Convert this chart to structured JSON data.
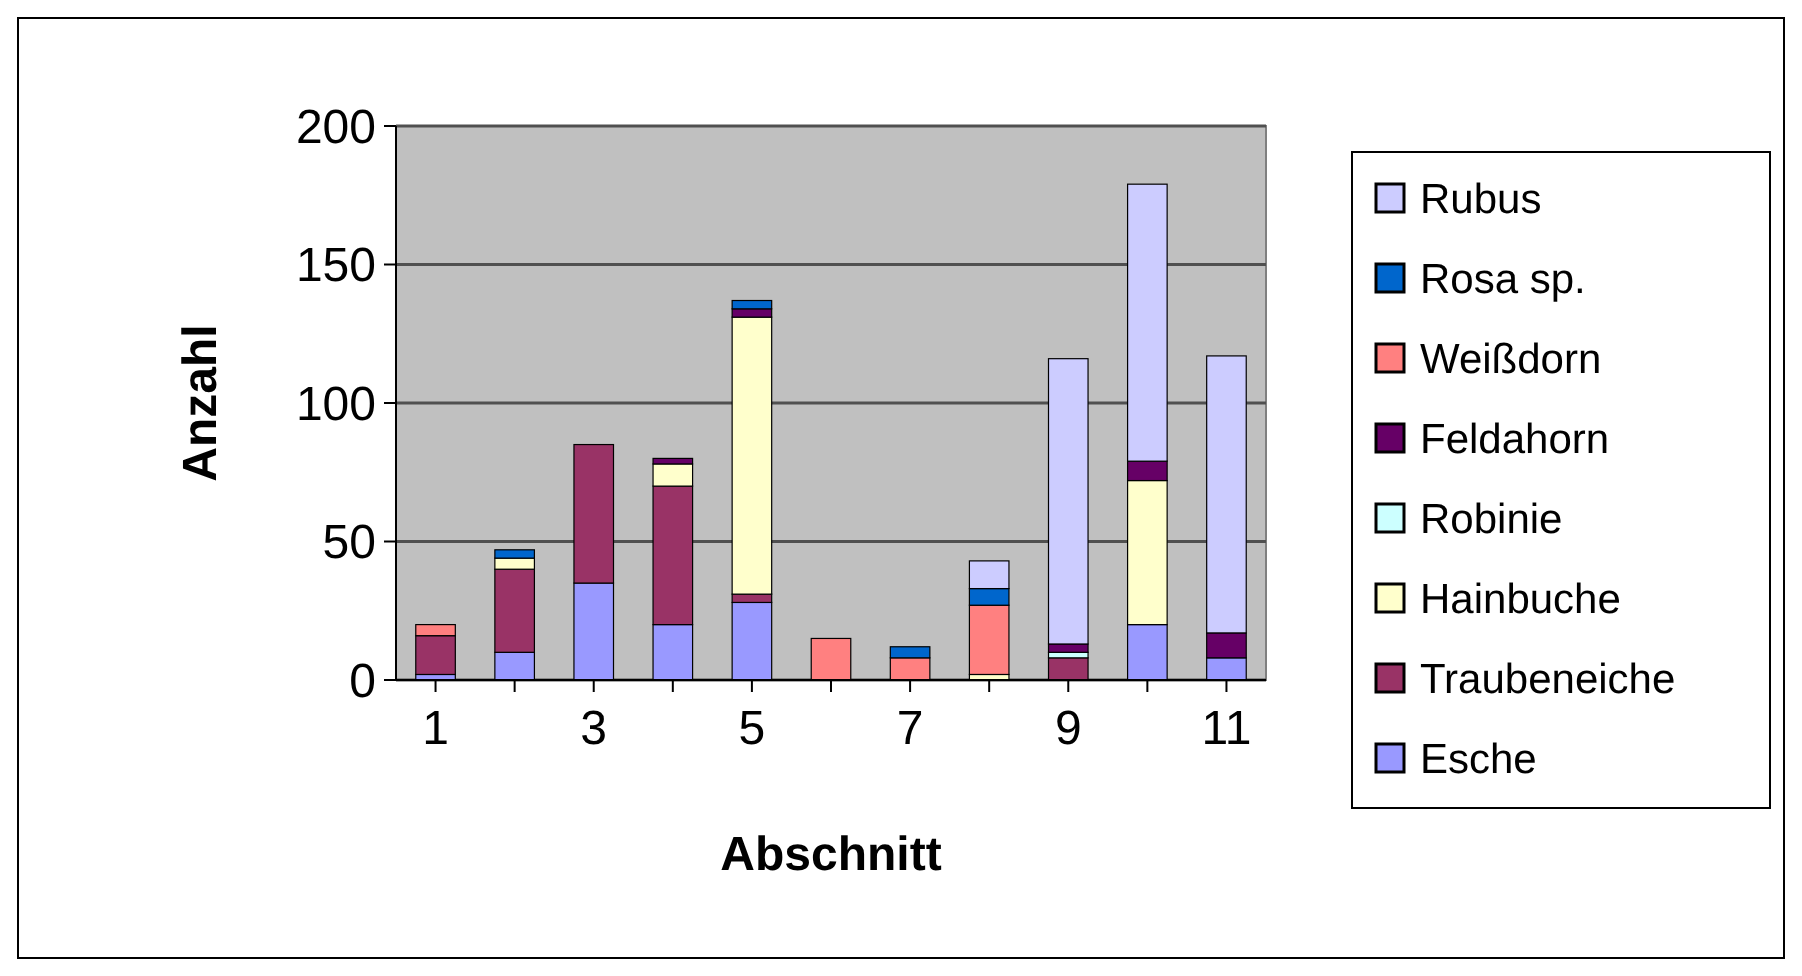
{
  "chart_data": {
    "type": "bar",
    "stacked": true,
    "xlabel": "Abschnitt",
    "ylabel": "Anzahl",
    "categories": [
      "1",
      null,
      "3",
      null,
      "5",
      null,
      "7",
      null,
      "9",
      null,
      "11"
    ],
    "series": [
      {
        "name": "Esche",
        "color": "#9999ff",
        "values": [
          2,
          10,
          35,
          20,
          28,
          0,
          0,
          0,
          0,
          20,
          8
        ]
      },
      {
        "name": "Traubeneiche",
        "color": "#993366",
        "values": [
          14,
          30,
          50,
          50,
          3,
          0,
          0,
          0,
          8,
          0,
          0
        ]
      },
      {
        "name": "Hainbuche",
        "color": "#ffffcc",
        "values": [
          0,
          4,
          0,
          8,
          100,
          0,
          0,
          2,
          0,
          52,
          0
        ]
      },
      {
        "name": "Robinie",
        "color": "#ccffff",
        "values": [
          0,
          0,
          0,
          0,
          0,
          0,
          0,
          0,
          2,
          0,
          0
        ]
      },
      {
        "name": "Feldahorn",
        "color": "#660066",
        "values": [
          0,
          0,
          0,
          2,
          3,
          0,
          0,
          0,
          3,
          7,
          9
        ]
      },
      {
        "name": "Weißdorn",
        "color": "#ff8080",
        "values": [
          4,
          0,
          0,
          0,
          0,
          15,
          8,
          25,
          0,
          0,
          0
        ]
      },
      {
        "name": "Rosa sp.",
        "color": "#0066cc",
        "values": [
          0,
          3,
          0,
          0,
          3,
          0,
          4,
          6,
          0,
          0,
          0
        ]
      },
      {
        "name": "Rubus",
        "color": "#ccccff",
        "values": [
          0,
          0,
          0,
          0,
          0,
          0,
          0,
          10,
          103,
          100,
          100
        ]
      }
    ],
    "ylim": [
      0,
      200
    ],
    "yticks": [
      0,
      50,
      100,
      150,
      200
    ],
    "grid": "y",
    "legend": "right"
  }
}
